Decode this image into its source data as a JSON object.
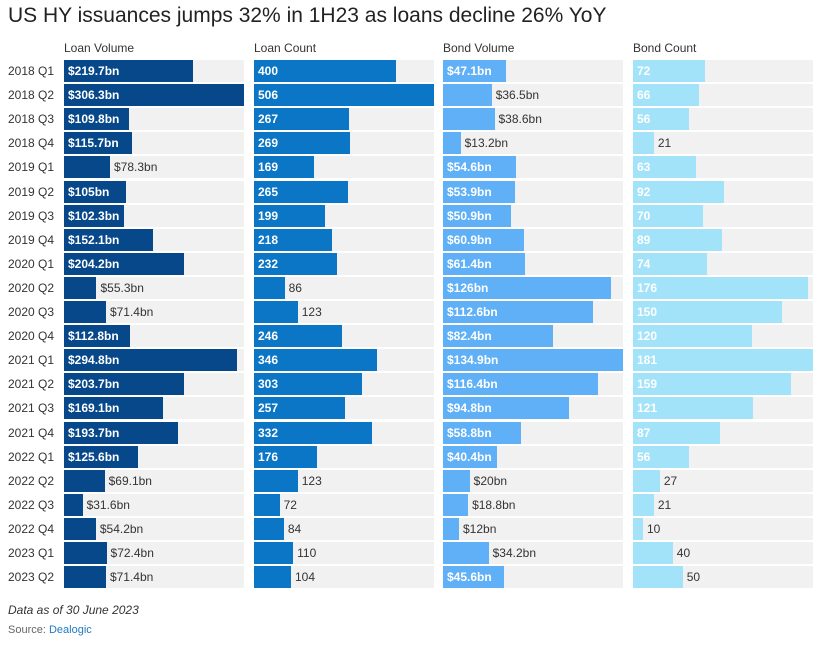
{
  "chart_data": {
    "type": "bar",
    "orientation": "horizontal",
    "title": "US HY issuances jumps 32% in 1H23 as loans decline 26% YoY",
    "categories": [
      "2018 Q1",
      "2018 Q2",
      "2018 Q3",
      "2018 Q4",
      "2019 Q1",
      "2019 Q2",
      "2019 Q3",
      "2019 Q4",
      "2020 Q1",
      "2020 Q2",
      "2020 Q3",
      "2020 Q4",
      "2021 Q1",
      "2021 Q2",
      "2021 Q3",
      "2021 Q4",
      "2022 Q1",
      "2022 Q2",
      "2022 Q3",
      "2022 Q4",
      "2023 Q1",
      "2023 Q2"
    ],
    "series": [
      {
        "name": "Loan Volume",
        "color": "#07488b",
        "values": [
          219.7,
          306.3,
          109.8,
          115.7,
          78.3,
          105,
          102.3,
          152.1,
          204.2,
          55.3,
          71.4,
          112.8,
          294.8,
          203.7,
          169.1,
          193.7,
          125.6,
          69.1,
          31.6,
          54.2,
          72.4,
          71.4
        ],
        "labels": [
          "$219.7bn",
          "$306.3bn",
          "$109.8bn",
          "$115.7bn",
          "$78.3bn",
          "$105bn",
          "$102.3bn",
          "$152.1bn",
          "$204.2bn",
          "$55.3bn",
          "$71.4bn",
          "$112.8bn",
          "$294.8bn",
          "$203.7bn",
          "$169.1bn",
          "$193.7bn",
          "$125.6bn",
          "$69.1bn",
          "$31.6bn",
          "$54.2bn",
          "$72.4bn",
          "$71.4bn"
        ]
      },
      {
        "name": "Loan Count",
        "color": "#0c76c6",
        "values": [
          400,
          506,
          267,
          269,
          169,
          265,
          199,
          218,
          232,
          86,
          123,
          246,
          346,
          303,
          257,
          332,
          176,
          123,
          72,
          84,
          110,
          104
        ],
        "labels": [
          "400",
          "506",
          "267",
          "269",
          "169",
          "265",
          "199",
          "218",
          "232",
          "86",
          "123",
          "246",
          "346",
          "303",
          "257",
          "332",
          "176",
          "123",
          "72",
          "84",
          "110",
          "104"
        ]
      },
      {
        "name": "Bond Volume",
        "color": "#5fb0f6",
        "values": [
          47.1,
          36.5,
          38.6,
          13.2,
          54.6,
          53.9,
          50.9,
          60.9,
          61.4,
          126,
          112.6,
          82.4,
          134.9,
          116.4,
          94.8,
          58.8,
          40.4,
          20,
          18.8,
          12,
          34.2,
          45.6
        ],
        "labels": [
          "$47.1bn",
          "$36.5bn",
          "$38.6bn",
          "$13.2bn",
          "$54.6bn",
          "$53.9bn",
          "$50.9bn",
          "$60.9bn",
          "$61.4bn",
          "$126bn",
          "$112.6bn",
          "$82.4bn",
          "$134.9bn",
          "$116.4bn",
          "$94.8bn",
          "$58.8bn",
          "$40.4bn",
          "$20bn",
          "$18.8bn",
          "$12bn",
          "$34.2bn",
          "$45.6bn"
        ]
      },
      {
        "name": "Bond Count",
        "color": "#a3e3fa",
        "values": [
          72,
          66,
          56,
          21,
          63,
          92,
          70,
          89,
          74,
          176,
          150,
          120,
          181,
          159,
          121,
          87,
          56,
          27,
          21,
          10,
          40,
          50
        ],
        "labels": [
          "72",
          "66",
          "56",
          "21",
          "63",
          "92",
          "70",
          "89",
          "74",
          "176",
          "150",
          "120",
          "181",
          "159",
          "121",
          "87",
          "56",
          "27",
          "21",
          "10",
          "40",
          "50"
        ]
      }
    ],
    "xlabel": "",
    "ylabel": "",
    "grid": false,
    "legend": "none"
  },
  "footer": {
    "note": "Data as of 30 June 2023",
    "source_label": "Source:",
    "source_name": "Dealogic"
  }
}
